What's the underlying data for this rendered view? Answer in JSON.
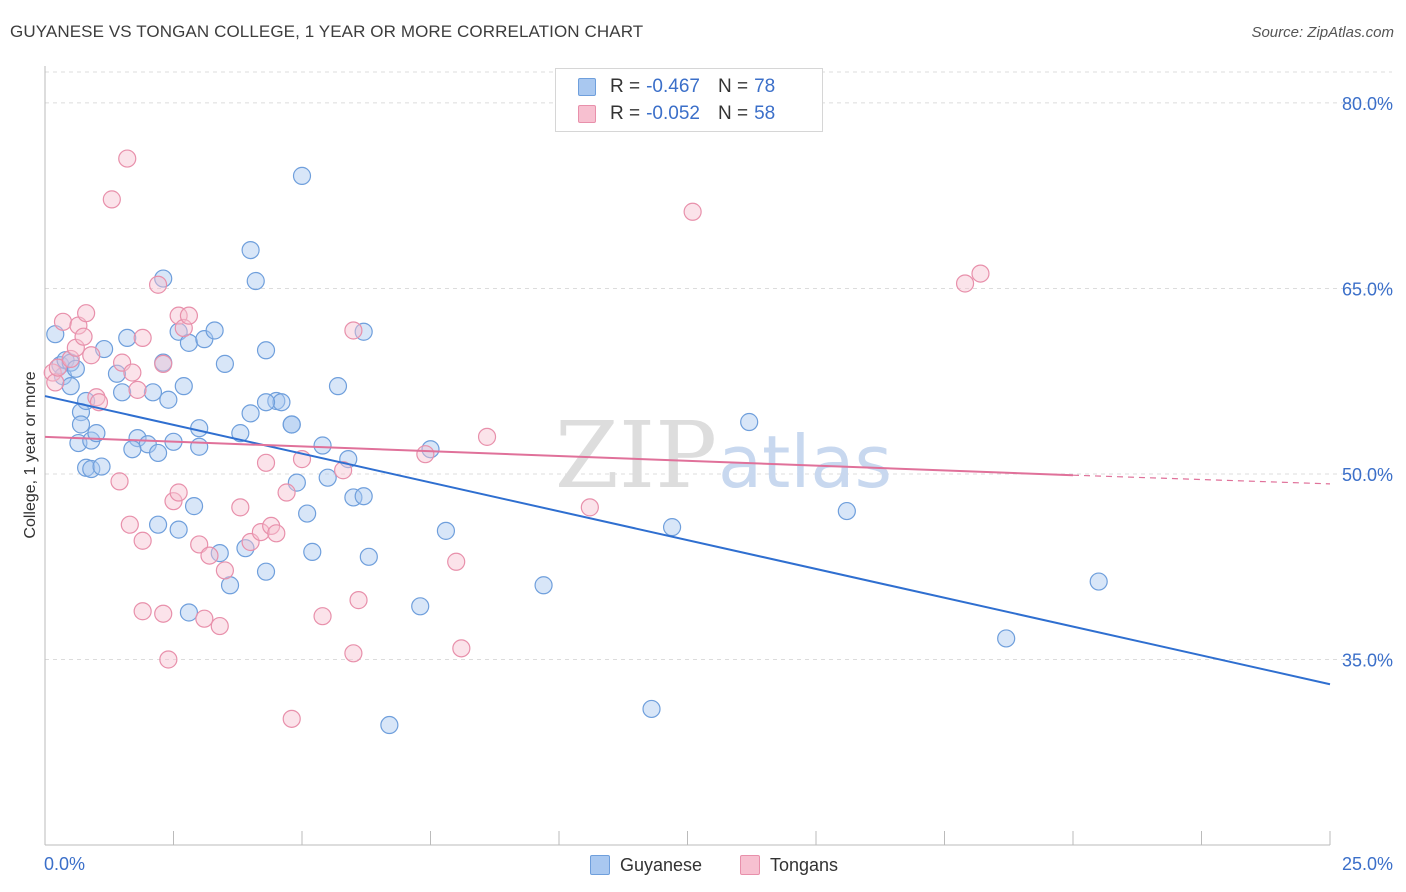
{
  "title": "GUYANESE VS TONGAN COLLEGE, 1 YEAR OR MORE CORRELATION CHART",
  "source": "Source: ZipAtlas.com",
  "watermark": {
    "zip": "ZIP",
    "atlas": "atlas"
  },
  "legend": {
    "rows": [
      {
        "r_label": "R =",
        "r_value": "-0.467",
        "n_label": "N =",
        "n_value": "78",
        "color": "#a9c8f0",
        "stroke": "#6f9fdc"
      },
      {
        "r_label": "R =",
        "r_value": "-0.052",
        "n_label": "N =",
        "n_value": "58",
        "color": "#f7c0d0",
        "stroke": "#e890ab"
      }
    ]
  },
  "chart_data": {
    "type": "scatter",
    "xlabel": "",
    "ylabel": "College, 1 year or more",
    "xlim": [
      0,
      25
    ],
    "ylim": [
      20,
      82.5
    ],
    "x_tick_labels": [
      "0.0%",
      "25.0%"
    ],
    "y_ticks": [
      35,
      50,
      65,
      80
    ],
    "y_tick_labels": [
      "35.0%",
      "50.0%",
      "65.0%",
      "80.0%"
    ],
    "grid": true,
    "legend_position": "top-center",
    "series": [
      {
        "name": "Guyanese",
        "color": "#a9c8f0",
        "stroke": "#6f9fdc",
        "trend_color": "#2f6fd0",
        "trend": {
          "x0": 0,
          "y0": 56.3,
          "x1": 25,
          "y1": 33.0
        },
        "points": [
          [
            0.2,
            61.3
          ],
          [
            0.3,
            58.8
          ],
          [
            0.35,
            57.9
          ],
          [
            0.4,
            59.2
          ],
          [
            0.5,
            59.0
          ],
          [
            0.6,
            58.5
          ],
          [
            0.5,
            57.1
          ],
          [
            0.7,
            55.0
          ],
          [
            0.8,
            55.9
          ],
          [
            0.7,
            54.0
          ],
          [
            0.65,
            52.5
          ],
          [
            0.9,
            52.7
          ],
          [
            1.0,
            53.3
          ],
          [
            0.8,
            50.5
          ],
          [
            0.9,
            50.4
          ],
          [
            1.1,
            50.6
          ],
          [
            1.15,
            60.1
          ],
          [
            1.4,
            58.1
          ],
          [
            1.5,
            56.6
          ],
          [
            1.6,
            61.0
          ],
          [
            1.8,
            52.9
          ],
          [
            2.0,
            52.4
          ],
          [
            1.7,
            52.0
          ],
          [
            2.1,
            56.6
          ],
          [
            2.3,
            65.8
          ],
          [
            2.2,
            51.7
          ],
          [
            2.2,
            45.9
          ],
          [
            2.3,
            59.0
          ],
          [
            2.4,
            56.0
          ],
          [
            2.6,
            61.5
          ],
          [
            2.7,
            57.1
          ],
          [
            2.5,
            52.6
          ],
          [
            2.6,
            45.5
          ],
          [
            2.8,
            60.6
          ],
          [
            3.0,
            53.7
          ],
          [
            3.0,
            52.2
          ],
          [
            2.9,
            47.4
          ],
          [
            3.1,
            60.9
          ],
          [
            3.3,
            61.6
          ],
          [
            3.4,
            43.6
          ],
          [
            3.6,
            41.0
          ],
          [
            3.5,
            58.9
          ],
          [
            3.8,
            53.3
          ],
          [
            3.9,
            44.0
          ],
          [
            4.0,
            68.1
          ],
          [
            4.1,
            65.6
          ],
          [
            4.3,
            60.0
          ],
          [
            4.3,
            42.1
          ],
          [
            4.5,
            55.9
          ],
          [
            4.6,
            55.8
          ],
          [
            4.3,
            55.8
          ],
          [
            4.8,
            54.0
          ],
          [
            4.9,
            49.3
          ],
          [
            5.0,
            74.1
          ],
          [
            5.1,
            46.8
          ],
          [
            5.2,
            43.7
          ],
          [
            5.4,
            52.3
          ],
          [
            5.5,
            49.7
          ],
          [
            5.9,
            51.2
          ],
          [
            5.7,
            57.1
          ],
          [
            6.0,
            48.1
          ],
          [
            6.2,
            48.2
          ],
          [
            6.2,
            61.5
          ],
          [
            6.3,
            43.3
          ],
          [
            6.7,
            29.7
          ],
          [
            7.3,
            39.3
          ],
          [
            7.5,
            52.0
          ],
          [
            7.8,
            45.4
          ],
          [
            9.7,
            41.0
          ],
          [
            11.8,
            31.0
          ],
          [
            12.2,
            45.7
          ],
          [
            13.7,
            54.2
          ],
          [
            15.6,
            47.0
          ],
          [
            18.7,
            36.7
          ],
          [
            20.5,
            41.3
          ],
          [
            2.8,
            38.8
          ],
          [
            4.8,
            54.0
          ],
          [
            4.0,
            54.9
          ]
        ]
      },
      {
        "name": "Tongans",
        "color": "#f7c0d0",
        "stroke": "#e890ab",
        "trend_color": "#e0719a",
        "trend": {
          "x0": 0,
          "y0": 53.0,
          "x1": 20,
          "y1": 49.9
        },
        "trend_dashed_to": {
          "x": 25,
          "y": 49.2
        },
        "points": [
          [
            0.15,
            58.2
          ],
          [
            0.2,
            57.4
          ],
          [
            0.25,
            58.6
          ],
          [
            0.35,
            62.3
          ],
          [
            0.5,
            59.3
          ],
          [
            0.6,
            60.2
          ],
          [
            0.65,
            62.0
          ],
          [
            0.75,
            61.1
          ],
          [
            0.8,
            63.0
          ],
          [
            0.9,
            59.6
          ],
          [
            1.0,
            56.2
          ],
          [
            1.05,
            55.8
          ],
          [
            1.3,
            72.2
          ],
          [
            1.5,
            59.0
          ],
          [
            1.6,
            75.5
          ],
          [
            1.7,
            58.2
          ],
          [
            1.8,
            56.8
          ],
          [
            1.9,
            61.0
          ],
          [
            1.45,
            49.4
          ],
          [
            1.65,
            45.9
          ],
          [
            1.9,
            44.6
          ],
          [
            1.9,
            38.9
          ],
          [
            2.2,
            65.3
          ],
          [
            2.3,
            58.9
          ],
          [
            2.3,
            38.7
          ],
          [
            2.4,
            35.0
          ],
          [
            2.5,
            47.8
          ],
          [
            2.6,
            48.5
          ],
          [
            2.6,
            62.8
          ],
          [
            2.7,
            61.8
          ],
          [
            2.8,
            62.8
          ],
          [
            3.0,
            44.3
          ],
          [
            3.1,
            38.3
          ],
          [
            3.2,
            43.4
          ],
          [
            3.4,
            37.7
          ],
          [
            3.5,
            42.2
          ],
          [
            3.8,
            47.3
          ],
          [
            4.0,
            44.5
          ],
          [
            4.2,
            45.3
          ],
          [
            4.3,
            50.9
          ],
          [
            4.4,
            45.8
          ],
          [
            4.5,
            45.2
          ],
          [
            4.7,
            48.5
          ],
          [
            4.8,
            30.2
          ],
          [
            5.0,
            51.2
          ],
          [
            5.4,
            38.5
          ],
          [
            5.8,
            50.3
          ],
          [
            6.0,
            61.6
          ],
          [
            6.0,
            35.5
          ],
          [
            6.1,
            39.8
          ],
          [
            7.4,
            51.6
          ],
          [
            8.0,
            42.9
          ],
          [
            8.1,
            35.9
          ],
          [
            8.6,
            53.0
          ],
          [
            10.6,
            47.3
          ],
          [
            12.6,
            71.2
          ],
          [
            17.9,
            65.4
          ],
          [
            18.2,
            66.2
          ]
        ]
      }
    ]
  }
}
